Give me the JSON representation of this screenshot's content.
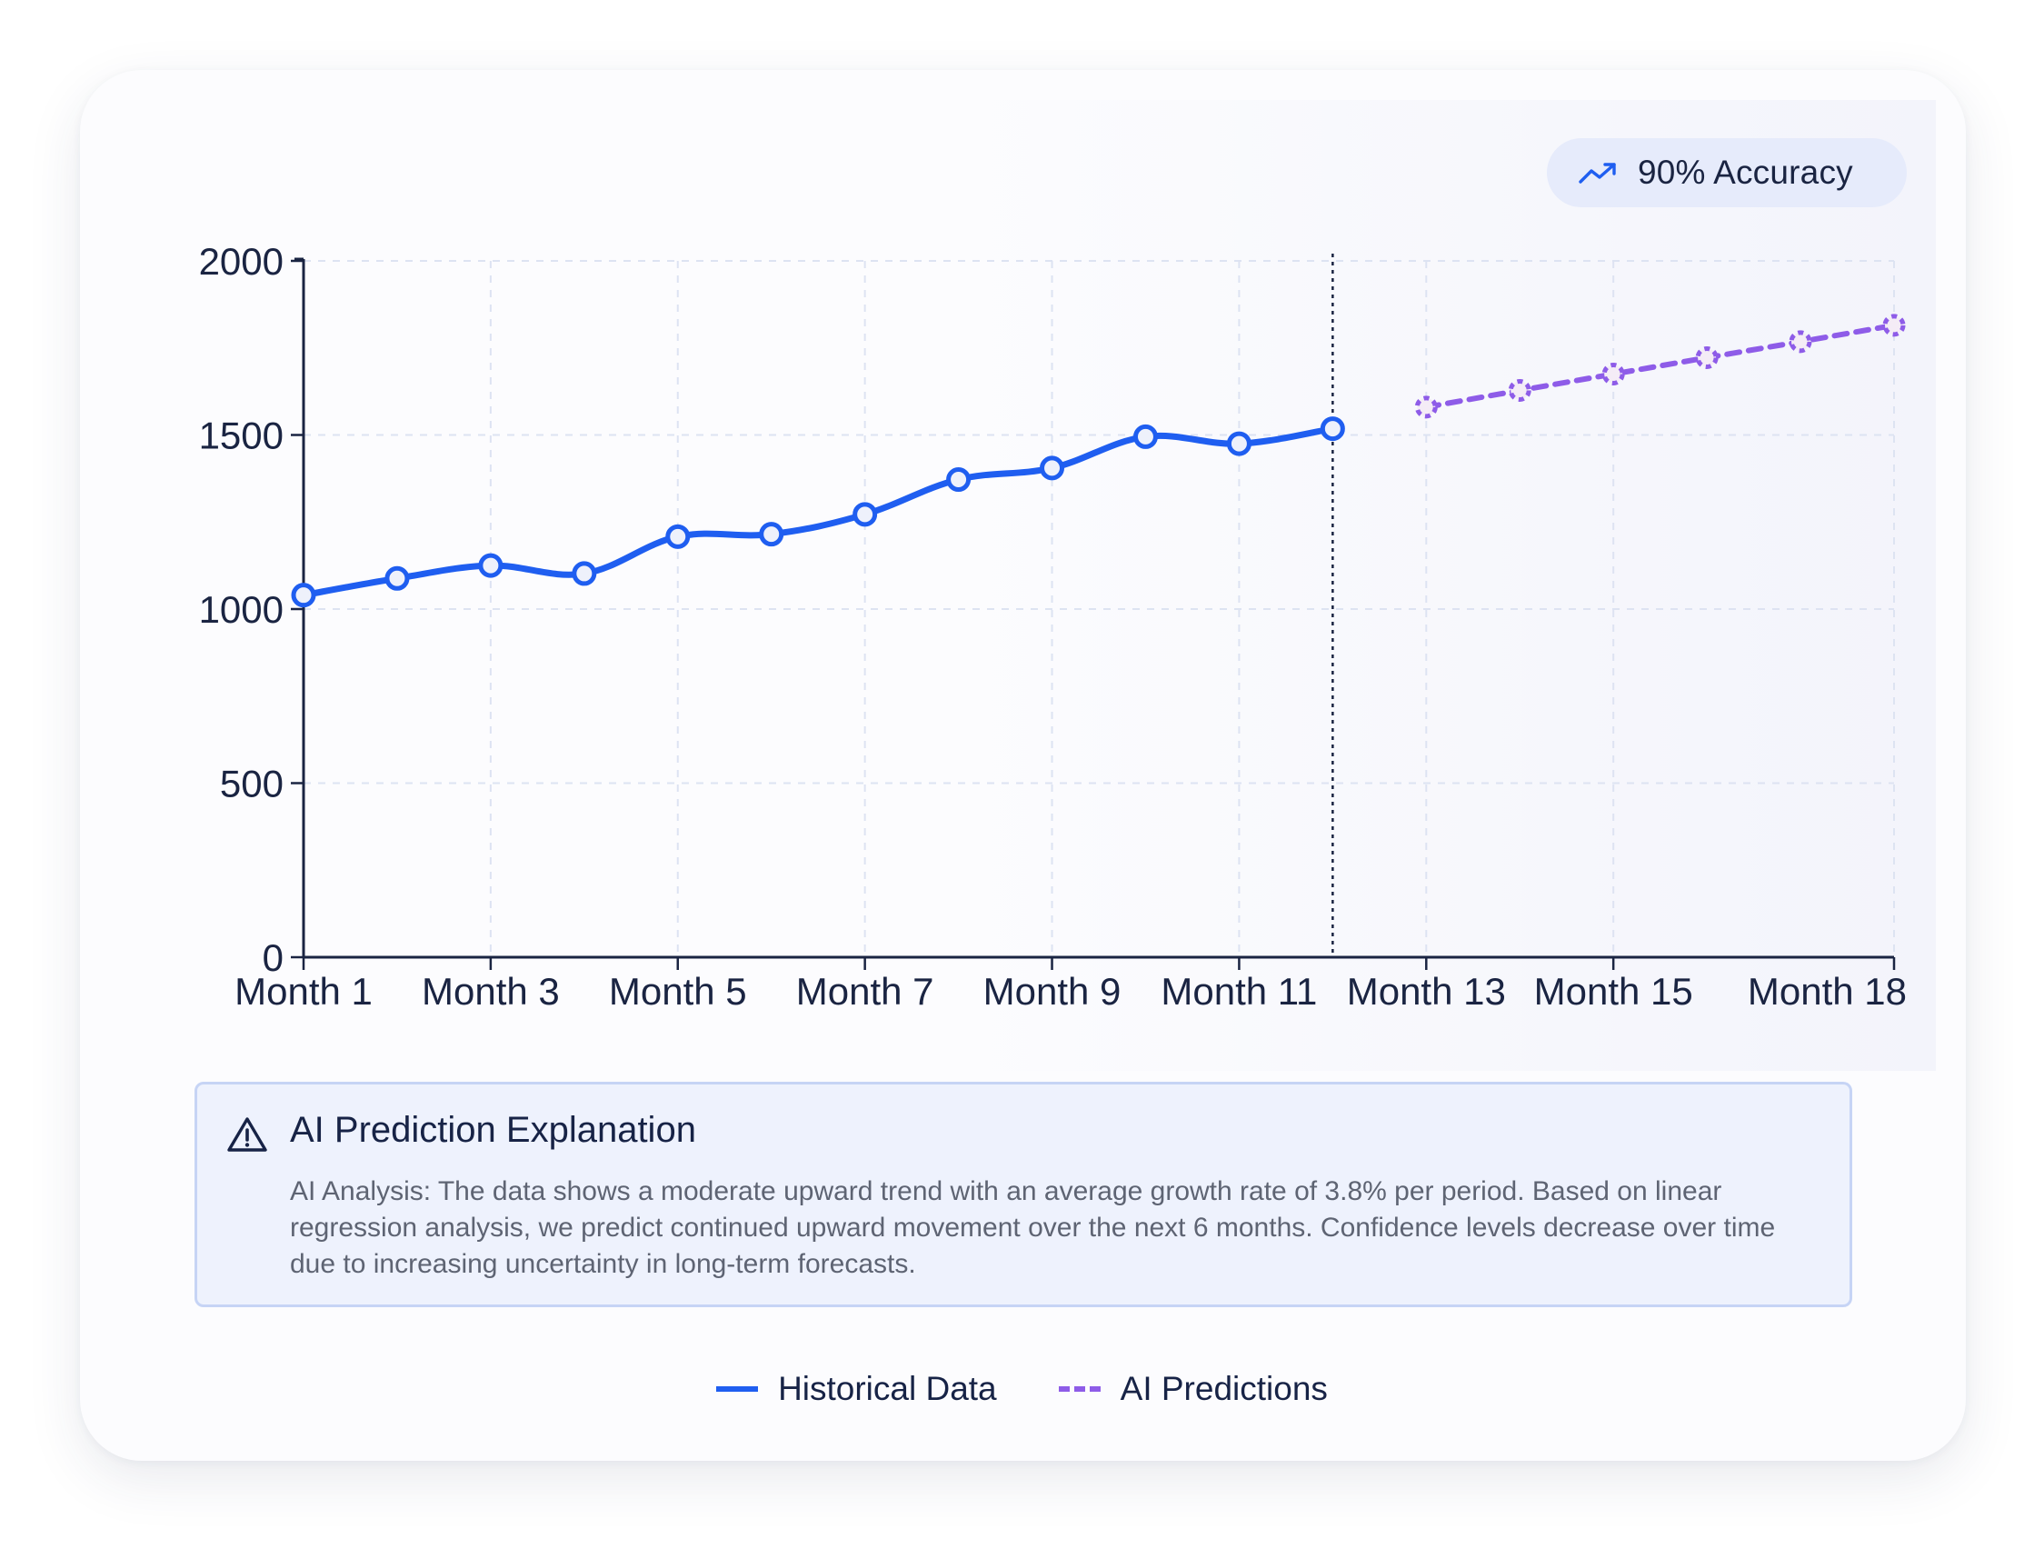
{
  "badge": {
    "icon": "trending-up-icon",
    "label": "90% Accuracy"
  },
  "explanation": {
    "icon": "warning-triangle-icon",
    "title": "AI Prediction Explanation",
    "body": "AI Analysis: The data shows a moderate upward trend with an average growth rate of 3.8% per period. Based on linear regression analysis, we predict continued upward movement over the next 6 months. Confidence levels decrease over time due to increasing uncertainty in long-term forecasts."
  },
  "legend": {
    "items": [
      {
        "label": "Historical Data",
        "style": "solid",
        "color": "#1f5ef0"
      },
      {
        "label": "AI Predictions",
        "style": "dashed",
        "color": "#8e5ce8"
      }
    ]
  },
  "chart_data": {
    "type": "line",
    "ylim": [
      0,
      2000
    ],
    "yticks": [
      0,
      500,
      1000,
      1500,
      2000
    ],
    "xtick_labels": [
      "Month 1",
      "Month 3",
      "Month 5",
      "Month 7",
      "Month 9",
      "Month 11",
      "Month 13",
      "Month 15",
      "Month 18"
    ],
    "grid": true,
    "forecast_divider_after": "Month 12",
    "series": [
      {
        "name": "Historical Data",
        "style": "solid",
        "color": "#1f5ef0",
        "points": [
          {
            "x": "Month 1",
            "y": 1040
          },
          {
            "x": "Month 2",
            "y": 1088
          },
          {
            "x": "Month 3",
            "y": 1125
          },
          {
            "x": "Month 4",
            "y": 1102
          },
          {
            "x": "Month 5",
            "y": 1208
          },
          {
            "x": "Month 6",
            "y": 1215
          },
          {
            "x": "Month 7",
            "y": 1272
          },
          {
            "x": "Month 8",
            "y": 1372
          },
          {
            "x": "Month 9",
            "y": 1405
          },
          {
            "x": "Month 10",
            "y": 1495
          },
          {
            "x": "Month 11",
            "y": 1475
          },
          {
            "x": "Month 12",
            "y": 1518
          }
        ]
      },
      {
        "name": "AI Predictions",
        "style": "dashed",
        "color": "#8e5ce8",
        "points": [
          {
            "x": "Month 13",
            "y": 1580
          },
          {
            "x": "Month 14",
            "y": 1628
          },
          {
            "x": "Month 15",
            "y": 1675
          },
          {
            "x": "Month 16",
            "y": 1722
          },
          {
            "x": "Month 17",
            "y": 1768
          },
          {
            "x": "Month 18",
            "y": 1815
          }
        ]
      }
    ]
  }
}
